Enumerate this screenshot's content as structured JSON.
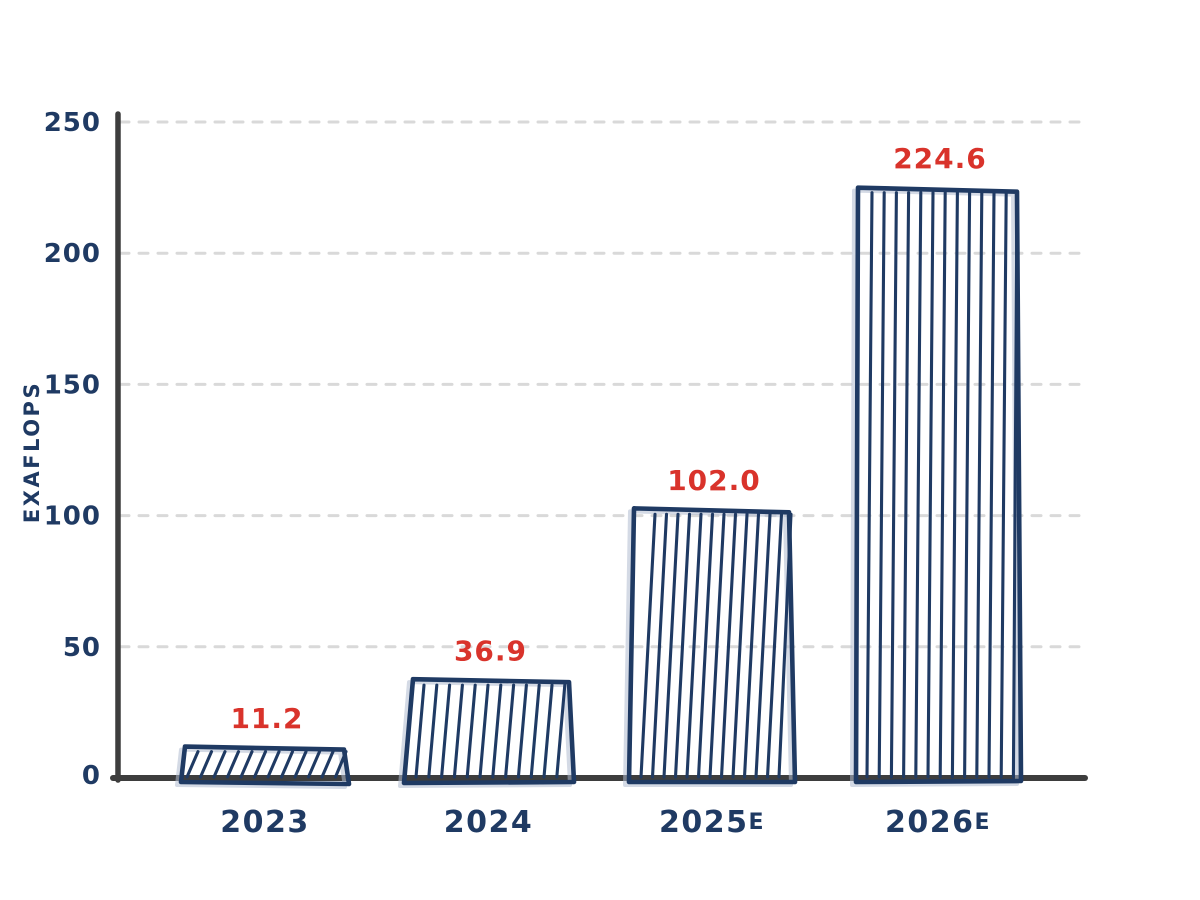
{
  "chart_data": {
    "type": "bar",
    "ylabel": "EXAFLOPS",
    "xlabel": "",
    "ylim": [
      0,
      250
    ],
    "yticks": [
      0,
      50,
      100,
      150,
      200,
      250
    ],
    "grid": "horizontal dashed lines at each y tick above 0",
    "legend": "none",
    "categories": [
      "2023",
      "2024",
      "2025E",
      "2026E"
    ],
    "values": [
      11.2,
      36.9,
      102.0,
      224.6
    ],
    "bars": [
      {
        "category_main": "2023",
        "category_suffix": "",
        "value": 11.2,
        "value_label": "11.2",
        "hatch": "diagonal"
      },
      {
        "category_main": "2024",
        "category_suffix": "",
        "value": 36.9,
        "value_label": "36.9",
        "hatch": "vertical"
      },
      {
        "category_main": "2025",
        "category_suffix": "E",
        "value": 102.0,
        "value_label": "102.0",
        "hatch": "vertical"
      },
      {
        "category_main": "2026",
        "category_suffix": "E",
        "value": 224.6,
        "value_label": "224.6",
        "hatch": "vertical"
      }
    ],
    "style": "hand-drawn sketch"
  },
  "colors": {
    "background": "#ffffff",
    "bar_outline": "#1f3a63",
    "bar_shadow": "#b0bcd0",
    "value_label": "#d9332b",
    "axis": "#3d3d3d",
    "gridline": "#d9d9d9",
    "tick_label": "#1f3a63",
    "axis_title": "#1f3a63"
  }
}
